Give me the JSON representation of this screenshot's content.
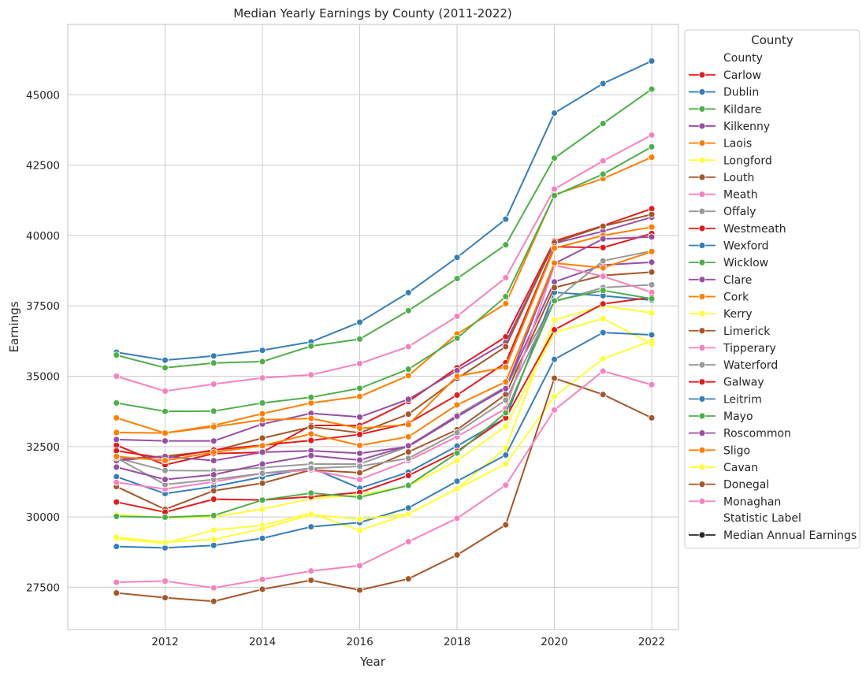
{
  "chart_data": {
    "type": "line",
    "title": "Median Yearly Earnings by County (2011-2022)",
    "xlabel": "Year",
    "ylabel": "Earnings",
    "xlim": [
      2010.0,
      2022.55
    ],
    "ylim": [
      26000,
      47500
    ],
    "xticks": [
      2012,
      2014,
      2016,
      2018,
      2020,
      2022
    ],
    "yticks": [
      27500,
      30000,
      32500,
      35000,
      37500,
      40000,
      42500,
      45000
    ],
    "grid": true,
    "legend_position": "right-outside",
    "legend": {
      "title": "County",
      "header_county": "County",
      "header_statistic": "Statistic Label",
      "statistic_entry": "Median Annual Earnings",
      "statistic_color": "#262626"
    },
    "x": [
      2011,
      2012,
      2013,
      2014,
      2015,
      2016,
      2017,
      2018,
      2019,
      2020,
      2021,
      2022
    ],
    "series": [
      {
        "name": "Carlow",
        "color": "#e41a1c",
        "values": [
          32550,
          31850,
          32250,
          32300,
          33250,
          33250,
          34100,
          35300,
          36400,
          39800,
          40350,
          40950
        ]
      },
      {
        "name": "Dublin",
        "color": "#377eb8",
        "values": [
          35850,
          35570,
          35720,
          35920,
          36220,
          36920,
          37970,
          39220,
          40580,
          44350,
          45400,
          46200
        ]
      },
      {
        "name": "Kildare",
        "color": "#4daf4a",
        "values": [
          35750,
          35300,
          35470,
          35520,
          36070,
          36320,
          37330,
          38470,
          39670,
          42750,
          43980,
          45200
        ]
      },
      {
        "name": "Kilkenny",
        "color": "#984ea3",
        "values": [
          32750,
          32700,
          32700,
          33300,
          33680,
          33550,
          34180,
          35200,
          36200,
          39720,
          40150,
          40650
        ]
      },
      {
        "name": "Laois",
        "color": "#ff7f00",
        "values": [
          33520,
          32980,
          33250,
          33670,
          34050,
          34280,
          35020,
          36500,
          37580,
          41450,
          42020,
          42780
        ]
      },
      {
        "name": "Longford",
        "color": "#ffff33",
        "values": [
          29220,
          29070,
          29530,
          29700,
          30130,
          29520,
          30110,
          31000,
          32450,
          37000,
          37500,
          37250
        ]
      },
      {
        "name": "Louth",
        "color": "#a65628",
        "values": [
          32050,
          32160,
          32350,
          32800,
          33200,
          32990,
          33650,
          34920,
          36050,
          39750,
          40330,
          40750
        ]
      },
      {
        "name": "Meath",
        "color": "#f781bf",
        "values": [
          35000,
          34470,
          34720,
          34940,
          35050,
          35450,
          36050,
          37130,
          38500,
          41650,
          42650,
          43570
        ]
      },
      {
        "name": "Offaly",
        "color": "#999999",
        "values": [
          32100,
          31650,
          31640,
          31750,
          31880,
          31880,
          32500,
          33620,
          34620,
          37650,
          38150,
          38250
        ]
      },
      {
        "name": "Westmeath",
        "color": "#e41a1c",
        "values": [
          32350,
          32080,
          32380,
          32550,
          32720,
          32930,
          33330,
          34330,
          35480,
          39600,
          39570,
          40070
        ]
      },
      {
        "name": "Wexford",
        "color": "#377eb8",
        "values": [
          31430,
          30830,
          31080,
          31420,
          31750,
          31020,
          31590,
          32520,
          33520,
          37980,
          37860,
          37700
        ]
      },
      {
        "name": "Wicklow",
        "color": "#4daf4a",
        "values": [
          34050,
          33750,
          33760,
          34050,
          34250,
          34570,
          35250,
          36350,
          37830,
          41420,
          42180,
          43150
        ]
      },
      {
        "name": "Clare",
        "color": "#984ea3",
        "values": [
          32000,
          32150,
          32000,
          32300,
          32350,
          32260,
          32500,
          33550,
          34600,
          38350,
          38950,
          39050
        ]
      },
      {
        "name": "Cork",
        "color": "#ff7f00",
        "values": [
          33000,
          32980,
          33200,
          33450,
          33500,
          33150,
          33280,
          35000,
          35320,
          39550,
          40000,
          40300
        ]
      },
      {
        "name": "Kerry",
        "color": "#ffff33",
        "values": [
          30080,
          29970,
          30000,
          30280,
          30650,
          30780,
          31110,
          32000,
          33220,
          36550,
          37050,
          36150
        ]
      },
      {
        "name": "Limerick",
        "color": "#a65628",
        "values": [
          31080,
          30270,
          30930,
          31200,
          31670,
          31570,
          32310,
          33100,
          34350,
          38150,
          38580,
          38700
        ]
      },
      {
        "name": "Tipperary",
        "color": "#f781bf",
        "values": [
          31230,
          30990,
          31250,
          31550,
          31670,
          31330,
          32000,
          32850,
          33850,
          38950,
          38550,
          37980
        ]
      },
      {
        "name": "Waterford",
        "color": "#999999",
        "values": [
          32100,
          31150,
          31330,
          31550,
          31730,
          31800,
          32080,
          33000,
          34150,
          37680,
          39100,
          39450
        ]
      },
      {
        "name": "Galway",
        "color": "#e41a1c",
        "values": [
          30530,
          30170,
          30630,
          30600,
          30720,
          30870,
          31470,
          32330,
          33520,
          36650,
          37570,
          37800
        ]
      },
      {
        "name": "Leitrim",
        "color": "#377eb8",
        "values": [
          28950,
          28900,
          28990,
          29240,
          29650,
          29800,
          30320,
          31270,
          32200,
          35600,
          36550,
          36470
        ]
      },
      {
        "name": "Mayo",
        "color": "#4daf4a",
        "values": [
          30020,
          29990,
          30050,
          30600,
          30850,
          30700,
          31120,
          32270,
          33700,
          37680,
          38050,
          37750
        ]
      },
      {
        "name": "Roscommon",
        "color": "#984ea3",
        "values": [
          31770,
          31330,
          31500,
          31880,
          32180,
          32020,
          32530,
          33580,
          34560,
          39000,
          39880,
          39950
        ]
      },
      {
        "name": "Sligo",
        "color": "#ff7f00",
        "values": [
          32150,
          32000,
          32300,
          32530,
          32950,
          32540,
          32850,
          33980,
          34800,
          39020,
          38850,
          39430
        ]
      },
      {
        "name": "Cavan",
        "color": "#ffff33",
        "values": [
          29280,
          29100,
          29200,
          29580,
          30080,
          29920,
          30100,
          31000,
          31880,
          34280,
          35620,
          36250
        ]
      },
      {
        "name": "Donegal",
        "color": "#a65628",
        "values": [
          27300,
          27130,
          27000,
          27430,
          27750,
          27400,
          27800,
          28650,
          29720,
          34930,
          34350,
          33520
        ]
      },
      {
        "name": "Monaghan",
        "color": "#f781bf",
        "values": [
          27680,
          27720,
          27480,
          27780,
          28080,
          28270,
          29120,
          29950,
          31130,
          33800,
          35180,
          34700
        ]
      }
    ]
  }
}
